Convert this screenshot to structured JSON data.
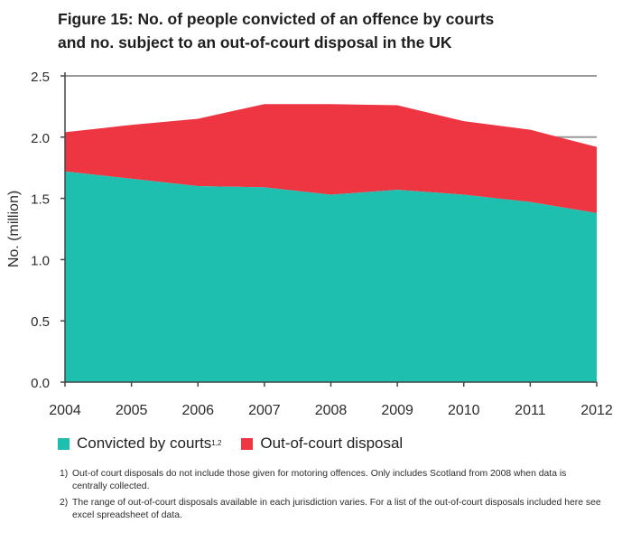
{
  "title_line1": "Figure 15: No. of people convicted of an offence by courts",
  "title_line2": "and no. subject to an out-of-court disposal in the UK",
  "colors": {
    "convicted": "#1fbfb0",
    "out_of_court": "#ee3542",
    "grid": "#999999",
    "axis": "#444444"
  },
  "chart_data": {
    "type": "area",
    "stacked": true,
    "x": [
      "2004",
      "2005",
      "2006",
      "2007",
      "2008",
      "2009",
      "2010",
      "2011",
      "2012"
    ],
    "ylabel": "No. (million)",
    "xlabel": "",
    "ylim": [
      0,
      2.5
    ],
    "yticks": [
      "0.0",
      "0.5",
      "1.0",
      "1.5",
      "2.0",
      "2.5"
    ],
    "grid": "horizontal",
    "series": [
      {
        "name": "Convicted by courts",
        "superscript": "1,2",
        "color": "#1fbfb0",
        "values": [
          1.72,
          1.66,
          1.6,
          1.59,
          1.53,
          1.57,
          1.53,
          1.47,
          1.38
        ]
      },
      {
        "name": "Out-of-court disposal",
        "color": "#ee3542",
        "values": [
          0.32,
          0.44,
          0.55,
          0.68,
          0.74,
          0.69,
          0.6,
          0.59,
          0.54
        ]
      }
    ]
  },
  "legend": {
    "item1_label": "Convicted by courts",
    "item1_sup": "1,2",
    "item2_label": "Out-of-court disposal"
  },
  "notes": [
    {
      "num": "1)",
      "text": "Out-of court disposals do not include those given for motoring offences. Only includes Scotland from 2008 when data is centrally collected."
    },
    {
      "num": "2)",
      "text": "The range of out-of-court disposals available in each jurisdiction varies. For a list of the out-of-court disposals included here see excel spreadsheet of data."
    }
  ]
}
